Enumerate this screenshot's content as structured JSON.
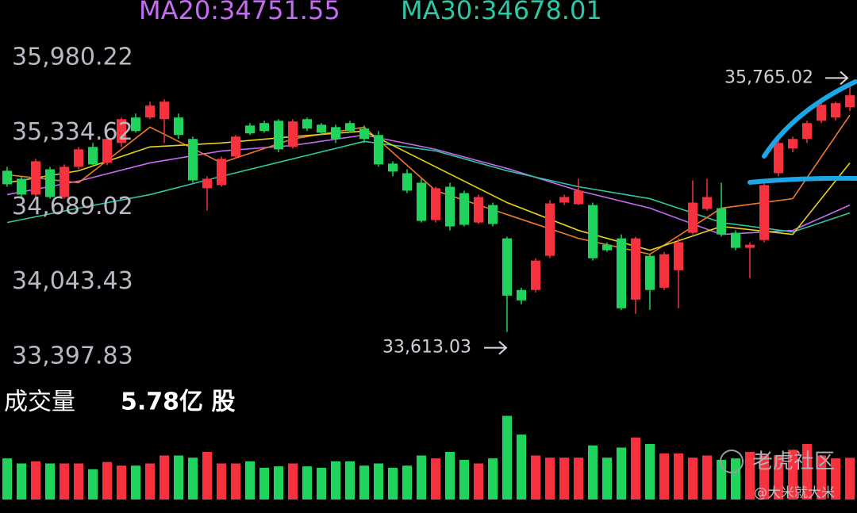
{
  "chart_data": {
    "type": "candlestick",
    "up_color": "#f7323f",
    "down_color": "#1fd35c",
    "ylim": [
      33397.83,
      35980.22
    ],
    "yticks": [
      {
        "value": 35980.22,
        "label": "35,980.22"
      },
      {
        "value": 35334.62,
        "label": "35,334.62"
      },
      {
        "value": 34689.02,
        "label": "34,689.02"
      },
      {
        "value": 34043.43,
        "label": "34,043.43"
      },
      {
        "value": 33397.83,
        "label": "33,397.83"
      }
    ],
    "open": [
      35005,
      34936,
      34799,
      35018,
      34778,
      35039,
      35211,
      35073,
      35245,
      35465,
      35465,
      35451,
      35465,
      35280,
      34854,
      34881,
      35128,
      35396,
      35417,
      35437,
      35211,
      35451,
      35403,
      35382,
      35417,
      35369,
      35314,
      35067,
      34984,
      34902,
      34579,
      34867,
      34812,
      34558,
      34709,
      34421,
      33975,
      33975,
      34270,
      34730,
      34716,
      34709,
      34366,
      34421,
      33892,
      34270,
      33995,
      34146,
      34469,
      34675,
      34682,
      34469,
      34339,
      34407,
      34984,
      35197,
      35280,
      35437,
      35465,
      35554
    ],
    "high": [
      35039,
      34957,
      35108,
      35039,
      35060,
      35211,
      35245,
      35300,
      35465,
      35499,
      35602,
      35623,
      35499,
      35300,
      34957,
      35128,
      35314,
      35417,
      35437,
      35451,
      35451,
      35465,
      35417,
      35403,
      35437,
      35396,
      35348,
      35087,
      35018,
      34936,
      34867,
      34902,
      34833,
      34799,
      34730,
      34435,
      33995,
      34249,
      34751,
      34799,
      34936,
      34730,
      34387,
      34455,
      34435,
      34284,
      34304,
      34421,
      34922,
      34936,
      34902,
      34490,
      34387,
      34902,
      35280,
      35300,
      35437,
      35599,
      35602,
      35765.02
    ],
    "low": [
      34867,
      34778,
      34778,
      34764,
      34764,
      35018,
      35039,
      35053,
      35211,
      35334,
      35451,
      35245,
      35280,
      34902,
      34661,
      34867,
      35108,
      35314,
      35334,
      35165,
      35197,
      35348,
      35314,
      35245,
      35334,
      35245,
      35039,
      34957,
      34812,
      34558,
      34558,
      34490,
      34524,
      34545,
      34524,
      33613.03,
      33851,
      33954,
      34249,
      34709,
      34709,
      34229,
      34304,
      33803,
      33769,
      33803,
      33975,
      33817,
      34455,
      34661,
      34435,
      34318,
      34078,
      34387,
      34957,
      35165,
      35245,
      35417,
      35437,
      35520
    ],
    "close": [
      34888,
      34799,
      35087,
      34778,
      35039,
      35190,
      35060,
      35280,
      35451,
      35348,
      35568,
      35602,
      35314,
      34922,
      34936,
      35108,
      35300,
      35328,
      35348,
      35190,
      35431,
      35369,
      35334,
      35280,
      35348,
      35280,
      35060,
      34998,
      34833,
      34572,
      34854,
      34524,
      34538,
      34778,
      34545,
      33926,
      33885,
      34229,
      34723,
      34778,
      34833,
      34249,
      34318,
      33817,
      34421,
      33975,
      34284,
      34387,
      34730,
      34778,
      34455,
      34339,
      34366,
      34881,
      35245,
      35280,
      35417,
      35575,
      35589,
      35657
    ],
    "ma_lines": [
      {
        "label": "MA20:34751.55",
        "color": "#c46cf2",
        "x": [
          0,
          5,
          10,
          15,
          20,
          25,
          30,
          35,
          40,
          45,
          50,
          55,
          59
        ],
        "values": [
          34799,
          34916,
          35073,
          35176,
          35224,
          35314,
          35190,
          35025,
          34833,
          34682,
          34455,
          34490,
          34709
        ]
      },
      {
        "label": "MA30:34678.01",
        "color": "#2ec7a6",
        "x": [
          0,
          5,
          10,
          15,
          20,
          25,
          30,
          35,
          40,
          45,
          50,
          55,
          59
        ],
        "values": [
          34558,
          34682,
          34799,
          34957,
          35108,
          35259,
          35177,
          35005,
          34867,
          34764,
          34558,
          34476,
          34641
        ]
      },
      {
        "color": "#f07a2a",
        "x": [
          0,
          5,
          10,
          15,
          20,
          25,
          30,
          35,
          40,
          45,
          50,
          55,
          59
        ],
        "values": [
          34970,
          34902,
          35382,
          35073,
          35280,
          35382,
          34833,
          34627,
          34421,
          34284,
          34682,
          34764,
          35486
        ]
      },
      {
        "color": "#e8d21d",
        "x": [
          0,
          5,
          10,
          15,
          20,
          25,
          30,
          35,
          40,
          45,
          50,
          55,
          59
        ],
        "values": [
          34902,
          35005,
          35211,
          35245,
          35300,
          35348,
          35039,
          34730,
          34490,
          34318,
          34524,
          34455,
          35073
        ]
      }
    ],
    "high_label": {
      "value": 35765.02,
      "label": "35,765.02"
    },
    "low_label": {
      "value": 33613.03,
      "label": "33,613.03"
    },
    "volume": {
      "title": "成交量",
      "current_label": "5.78亿 股",
      "values": [
        5.7,
        5.0,
        5.3,
        5.0,
        5.0,
        5.0,
        4.2,
        5.2,
        4.7,
        4.7,
        5.0,
        6.1,
        6.1,
        5.8,
        6.6,
        5.0,
        5.0,
        5.3,
        4.4,
        4.6,
        5.0,
        4.6,
        4.4,
        5.3,
        5.3,
        4.7,
        5.0,
        4.4,
        4.7,
        6.1,
        5.7,
        6.6,
        5.5,
        5.0,
        5.7,
        11.6,
        9.0,
        6.1,
        5.8,
        5.8,
        5.8,
        7.5,
        5.8,
        7.2,
        8.6,
        7.7,
        6.4,
        6.4,
        5.8,
        6.1,
        5.5,
        5.7,
        6.6,
        6.1,
        6.1,
        6.9,
        7.7,
        6.1,
        5.7,
        5.78
      ]
    }
  },
  "watermark": {
    "brand": "老虎社区",
    "author": "@大米就大米"
  }
}
